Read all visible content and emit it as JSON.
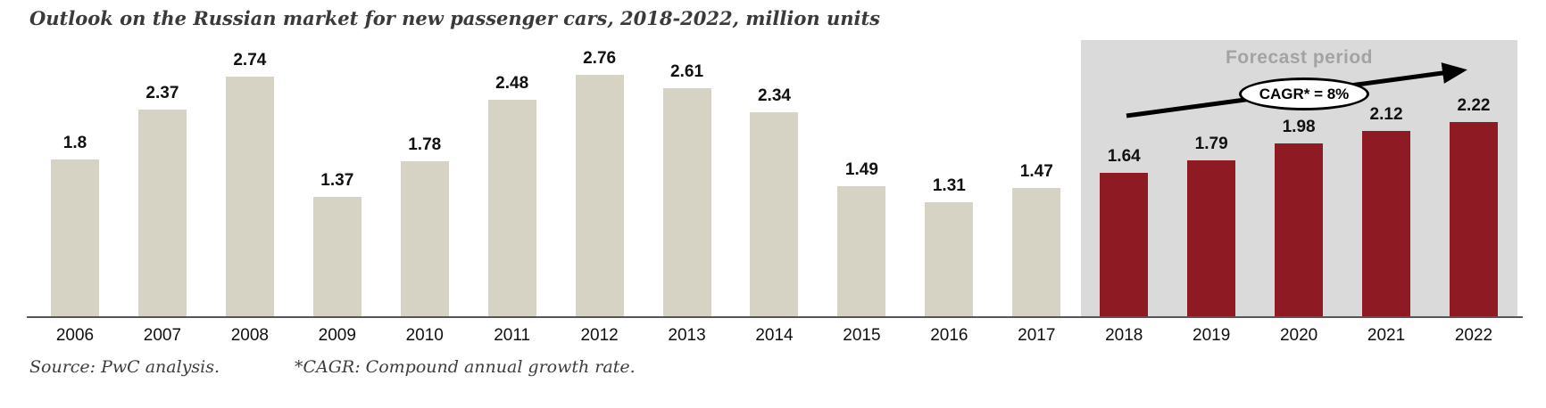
{
  "title": "Outlook on the Russian market for new passenger cars, 2018-2022, million units",
  "chart_data": {
    "type": "bar",
    "title": "Outlook on the Russian market for new passenger cars, 2018-2022, million units",
    "categories": [
      "2006",
      "2007",
      "2008",
      "2009",
      "2010",
      "2011",
      "2012",
      "2013",
      "2014",
      "2015",
      "2016",
      "2017",
      "2018",
      "2019",
      "2020",
      "2021",
      "2022"
    ],
    "values": [
      1.8,
      2.37,
      2.74,
      1.37,
      1.78,
      2.48,
      2.76,
      2.61,
      2.34,
      1.49,
      1.31,
      1.47,
      1.64,
      1.79,
      1.98,
      2.12,
      2.22
    ],
    "units": "million units",
    "ylim": [
      0,
      3
    ],
    "grid": false,
    "legend": false,
    "forecast_start_index": 12,
    "colors": {
      "actual": "#d6d2c4",
      "forecast": "#8e1b23",
      "forecast_background": "#dadada",
      "axis": "#55565a",
      "forecast_label_text": "#a3a3a3"
    },
    "annotations": {
      "forecast_period": "Forecast period",
      "cagr": "CAGR* = 8%"
    }
  },
  "footer": {
    "source": "Source: PwC analysis.",
    "cagr_note": "*CAGR: Compound annual growth rate."
  }
}
